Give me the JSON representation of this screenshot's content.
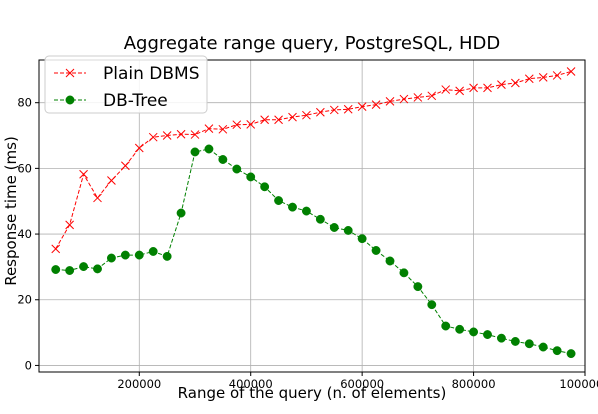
{
  "chart_data": {
    "type": "line",
    "title": "Aggregate range query, PostgreSQL, HDD",
    "xlabel": "Range of the query  (n. of elements)",
    "ylabel": "Response time (ms)",
    "xlim": [
      20000,
      1000000
    ],
    "ylim": [
      -2,
      93
    ],
    "xticks": [
      200000,
      400000,
      600000,
      800000,
      1000000
    ],
    "xtick_labels": [
      "200000",
      "400000",
      "600000",
      "800000",
      "1000000"
    ],
    "yticks": [
      0,
      20,
      40,
      60,
      80
    ],
    "ytick_labels": [
      "0",
      "20",
      "40",
      "60",
      "80"
    ],
    "grid": true,
    "legend_position": "top-left",
    "x": [
      50000,
      75000,
      100000,
      125000,
      150000,
      175000,
      200000,
      225000,
      250000,
      275000,
      300000,
      325000,
      350000,
      375000,
      400000,
      425000,
      450000,
      475000,
      500000,
      525000,
      550000,
      575000,
      600000,
      625000,
      650000,
      675000,
      700000,
      725000,
      750000,
      775000,
      800000,
      825000,
      850000,
      875000,
      900000,
      925000,
      950000,
      975000
    ],
    "series": [
      {
        "name": "Plain DBMS",
        "color": "#ff0000",
        "marker": "x",
        "values": [
          35.5,
          42.8,
          58.2,
          51.0,
          56.3,
          60.8,
          66.2,
          69.5,
          70.0,
          70.4,
          70.3,
          72.1,
          71.9,
          73.3,
          73.4,
          74.8,
          74.8,
          75.6,
          76.2,
          77.1,
          77.8,
          78.0,
          78.8,
          79.4,
          80.4,
          81.1,
          81.6,
          82.1,
          84.0,
          83.6,
          84.5,
          84.5,
          85.5,
          86.0,
          87.3,
          87.7,
          88.3,
          89.5
        ]
      },
      {
        "name": "DB-Tree",
        "color": "#008000",
        "marker": "circle",
        "values": [
          29.2,
          28.9,
          30.1,
          29.4,
          32.7,
          33.6,
          33.6,
          34.7,
          33.2,
          46.4,
          65.0,
          65.9,
          62.7,
          59.8,
          57.4,
          54.4,
          50.2,
          48.2,
          47.0,
          44.5,
          42.0,
          41.1,
          38.6,
          35.0,
          31.8,
          28.2,
          24.0,
          18.5,
          12.0,
          11.0,
          10.2,
          9.4,
          8.3,
          7.3,
          6.6,
          5.6,
          4.5,
          3.6
        ]
      }
    ]
  }
}
